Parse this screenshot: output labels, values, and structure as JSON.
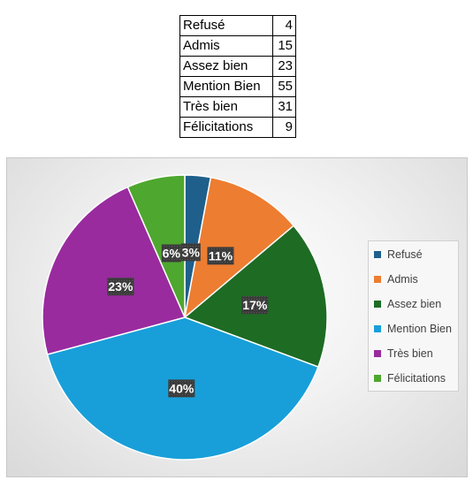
{
  "table": {
    "rows": [
      {
        "label": "Refusé",
        "value": "4"
      },
      {
        "label": "Admis",
        "value": "15"
      },
      {
        "label": "Assez bien",
        "value": "23"
      },
      {
        "label": "Mention Bien",
        "value": "55"
      },
      {
        "label": "Très bien",
        "value": "31"
      },
      {
        "label": "Félicitations",
        "value": "9"
      }
    ]
  },
  "chart_data": {
    "type": "pie",
    "categories": [
      "Refusé",
      "Admis",
      "Assez bien",
      "Mention Bien",
      "Très bien",
      "Félicitations"
    ],
    "values": [
      4,
      15,
      23,
      55,
      31,
      9
    ],
    "percent_labels": [
      "3%",
      "11%",
      "17%",
      "40%",
      "23%",
      "6%"
    ],
    "colors": [
      "#1f5f8b",
      "#ed7d31",
      "#1e6b24",
      "#189fd9",
      "#992b9e",
      "#4ea72e"
    ],
    "legend": "right",
    "start_angle": "12 o'clock",
    "direction": "clockwise"
  }
}
